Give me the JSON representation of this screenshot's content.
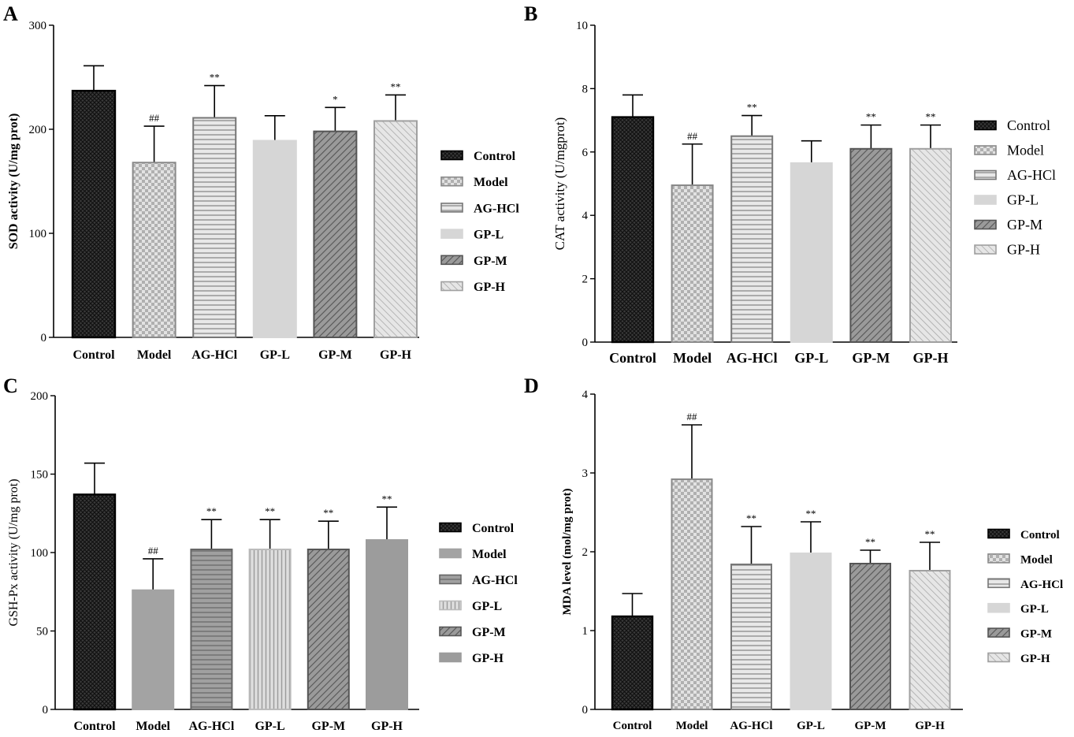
{
  "chart_data": [
    {
      "panel": "A",
      "type": "bar",
      "title": "",
      "xlabel": "",
      "ylabel": "SOD activity (U/mg prot)",
      "categories": [
        "Control",
        "Model",
        "AG-HCl",
        "GP-L",
        "GP-M",
        "GP-H"
      ],
      "values": [
        237,
        168,
        211,
        189,
        198,
        208
      ],
      "errors": [
        24,
        35,
        31,
        24,
        23,
        25
      ],
      "annotations": [
        "",
        "##",
        "**",
        "",
        "*",
        "**"
      ],
      "ylim": [
        0,
        300
      ],
      "yticks": [
        0,
        100,
        200,
        300
      ],
      "legend": [
        "Control",
        "Model",
        "AG-HCl",
        "GP-L",
        "GP-M",
        "GP-H"
      ],
      "legend_position": "right"
    },
    {
      "panel": "B",
      "type": "bar",
      "title": "",
      "xlabel": "",
      "ylabel": "CAT activity (U/mgprot)",
      "categories": [
        "Control",
        "Model",
        "AG-HCl",
        "GP-L",
        "GP-M",
        "GP-H"
      ],
      "values": [
        7.1,
        4.95,
        6.5,
        5.65,
        6.1,
        6.1
      ],
      "errors": [
        0.7,
        1.3,
        0.65,
        0.7,
        0.75,
        0.75
      ],
      "annotations": [
        "",
        "##",
        "**",
        "",
        "**",
        "**"
      ],
      "ylim": [
        0,
        10
      ],
      "yticks": [
        0,
        2,
        4,
        6,
        8,
        10
      ],
      "legend": [
        "Control",
        "Model",
        "AG-HCl",
        "GP-L",
        "GP-M",
        "GP-H"
      ],
      "legend_position": "right"
    },
    {
      "panel": "C",
      "type": "bar",
      "title": "",
      "xlabel": "",
      "ylabel": "GSH-Px activity (U/mg prot)",
      "categories": [
        "Control",
        "Model",
        "AG-HCl",
        "GP-L",
        "GP-M",
        "GP-H"
      ],
      "values": [
        137,
        76,
        102,
        102,
        102,
        108
      ],
      "errors": [
        20,
        20,
        19,
        19,
        18,
        21
      ],
      "annotations": [
        "",
        "##",
        "**",
        "**",
        "**",
        "**"
      ],
      "ylim": [
        0,
        200
      ],
      "yticks": [
        0,
        50,
        100,
        150,
        200
      ],
      "legend": [
        "Control",
        "Model",
        "AG-HCl",
        "GP-L",
        "GP-M",
        "GP-H"
      ],
      "legend_position": "right"
    },
    {
      "panel": "D",
      "type": "bar",
      "title": "",
      "xlabel": "",
      "ylabel": "MDA level (mol/mg prot)",
      "categories": [
        "Control",
        "Model",
        "AG-HCl",
        "GP-L",
        "GP-M",
        "GP-H"
      ],
      "values": [
        1.18,
        2.92,
        1.84,
        1.98,
        1.85,
        1.76
      ],
      "errors": [
        0.29,
        0.69,
        0.48,
        0.4,
        0.17,
        0.36
      ],
      "annotations": [
        "",
        "##",
        "**",
        "**",
        "**",
        "**"
      ],
      "ylim": [
        0,
        4
      ],
      "yticks": [
        0,
        1,
        2,
        3,
        4
      ],
      "legend": [
        "Control",
        "Model",
        "AG-HCl",
        "GP-L",
        "GP-M",
        "GP-H"
      ],
      "legend_position": "right"
    }
  ]
}
